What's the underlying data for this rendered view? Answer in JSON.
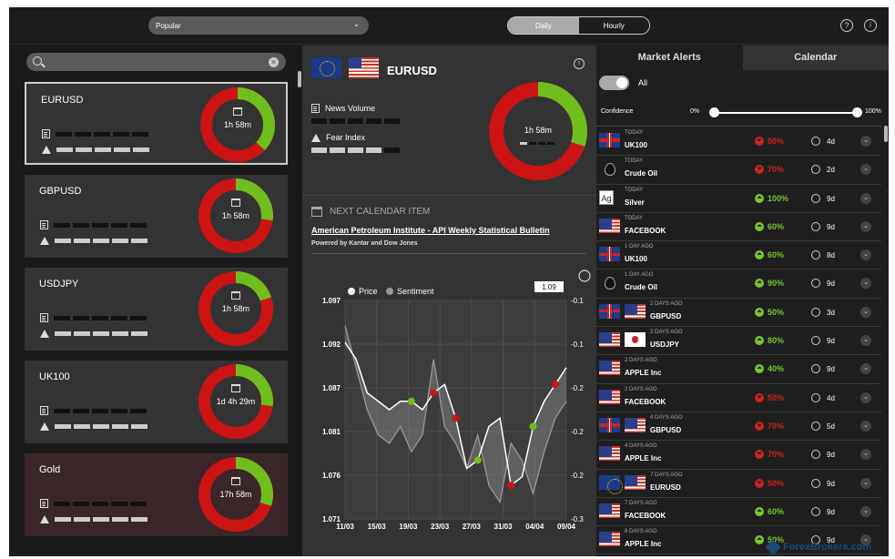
{
  "topbar": {
    "dropdown_value": "Popular",
    "toggle_daily": "Daily",
    "toggle_hourly": "Hourly",
    "help_icon": "?",
    "info_icon": "i"
  },
  "search": {
    "placeholder": ""
  },
  "cards": [
    {
      "name": "EURUSD",
      "time": "1h 58m",
      "news_level": 0,
      "fear_level": 5,
      "green_frac": 0.37
    },
    {
      "name": "GBPUSD",
      "time": "1h 58m",
      "news_level": 0,
      "fear_level": 5,
      "green_frac": 0.27
    },
    {
      "name": "USDJPY",
      "time": "1h 58m",
      "news_level": 0,
      "fear_level": 5,
      "green_frac": 0.2
    },
    {
      "name": "UK100",
      "time": "1d 4h 29m",
      "news_level": 0,
      "fear_level": 5,
      "green_frac": 0.27
    },
    {
      "name": "Gold",
      "time": "17h 58m",
      "news_level": 0,
      "fear_level": 5,
      "green_frac": 0.3
    }
  ],
  "detail": {
    "pair": "EURUSD",
    "news_volume_label": "News Volume",
    "fear_index_label": "Fear Index",
    "time": "1h 58m",
    "next_calendar_label": "NEXT CALENDAR ITEM",
    "event_title": "American Petroleum Institute - API Weekly Statistical Bulletin",
    "powered_by": "Powered by Kantar and Dow Jones"
  },
  "chart_data": {
    "type": "line",
    "legend": [
      "Price",
      "Sentiment"
    ],
    "current_value_label": "1.09",
    "x_ticks": [
      "11/03",
      "15/03",
      "19/03",
      "23/03",
      "27/03",
      "31/03",
      "04/04",
      "09/04"
    ],
    "y_left_ticks": [
      "1.097",
      "1.092",
      "1.087",
      "1.081",
      "1.076",
      "1.071"
    ],
    "y_right_ticks": [
      "-0.1",
      "-0.1",
      "-0.2",
      "-0.2",
      "-0.2",
      "-0.3"
    ],
    "ylim": [
      1.071,
      1.097
    ],
    "series": [
      {
        "name": "Price",
        "values": [
          1.092,
          1.09,
          1.086,
          1.085,
          1.084,
          1.085,
          1.085,
          1.084,
          1.086,
          1.087,
          1.083,
          1.077,
          1.078,
          1.082,
          1.083,
          1.075,
          1.076,
          1.082,
          1.085,
          1.087,
          1.089
        ]
      },
      {
        "name": "Sentiment",
        "values": [
          1.094,
          1.089,
          1.084,
          1.081,
          1.08,
          1.082,
          1.079,
          1.081,
          1.09,
          1.082,
          1.08,
          1.077,
          1.081,
          1.075,
          1.073,
          1.08,
          1.078,
          1.074,
          1.079,
          1.083,
          1.085
        ]
      }
    ]
  },
  "alerts_panel": {
    "tab_alerts": "Market Alerts",
    "tab_calendar": "Calendar",
    "all_label": "All",
    "confidence_label": "Confidence",
    "conf_min": "0%",
    "conf_max": "100%"
  },
  "alerts": [
    {
      "when": "TODAY",
      "name": "UK100",
      "flags": [
        "uk"
      ],
      "dir": "dn",
      "conf": "50%",
      "period": "4d"
    },
    {
      "when": "TODAY",
      "name": "Crude Oil",
      "flags": [
        "drop"
      ],
      "dir": "dn",
      "conf": "70%",
      "period": "2d"
    },
    {
      "when": "TODAY",
      "name": "Silver",
      "flags": [
        "ag"
      ],
      "dir": "up",
      "conf": "100%",
      "period": "9d"
    },
    {
      "when": "TODAY",
      "name": "FACEBOOK",
      "flags": [
        "us"
      ],
      "dir": "up",
      "conf": "60%",
      "period": "9d"
    },
    {
      "when": "1 DAY AGO",
      "name": "UK100",
      "flags": [
        "uk"
      ],
      "dir": "up",
      "conf": "60%",
      "period": "8d"
    },
    {
      "when": "1 DAY AGO",
      "name": "Crude Oil",
      "flags": [
        "drop"
      ],
      "dir": "up",
      "conf": "90%",
      "period": "9d"
    },
    {
      "when": "2 DAYS AGO",
      "name": "GBPUSD",
      "flags": [
        "uk",
        "us"
      ],
      "dir": "up",
      "conf": "50%",
      "period": "3d"
    },
    {
      "when": "2 DAYS AGO",
      "name": "USDJPY",
      "flags": [
        "us",
        "jp"
      ],
      "dir": "up",
      "conf": "80%",
      "period": "9d"
    },
    {
      "when": "2 DAYS AGO",
      "name": "APPLE Inc",
      "flags": [
        "us"
      ],
      "dir": "up",
      "conf": "40%",
      "period": "9d"
    },
    {
      "when": "2 DAYS AGO",
      "name": "FACEBOOK",
      "flags": [
        "us"
      ],
      "dir": "dn",
      "conf": "50%",
      "period": "4d"
    },
    {
      "when": "4 DAYS AGO",
      "name": "GBPUSD",
      "flags": [
        "uk",
        "us"
      ],
      "dir": "dn",
      "conf": "70%",
      "period": "5d"
    },
    {
      "when": "4 DAYS AGO",
      "name": "APPLE Inc",
      "flags": [
        "us"
      ],
      "dir": "dn",
      "conf": "70%",
      "period": "9d"
    },
    {
      "when": "7 DAYS AGO",
      "name": "EURUSD",
      "flags": [
        "eu",
        "us"
      ],
      "dir": "dn",
      "conf": "50%",
      "period": "9d"
    },
    {
      "when": "7 DAYS AGO",
      "name": "FACEBOOK",
      "flags": [
        "us"
      ],
      "dir": "up",
      "conf": "60%",
      "period": "9d"
    },
    {
      "when": "8 DAYS AGO",
      "name": "APPLE Inc",
      "flags": [
        "us"
      ],
      "dir": "up",
      "conf": "50%",
      "period": "9d"
    }
  ],
  "watermark": "ForexBrokers.com",
  "colors": {
    "green": "#6fbe1e",
    "red": "#cc1414"
  }
}
